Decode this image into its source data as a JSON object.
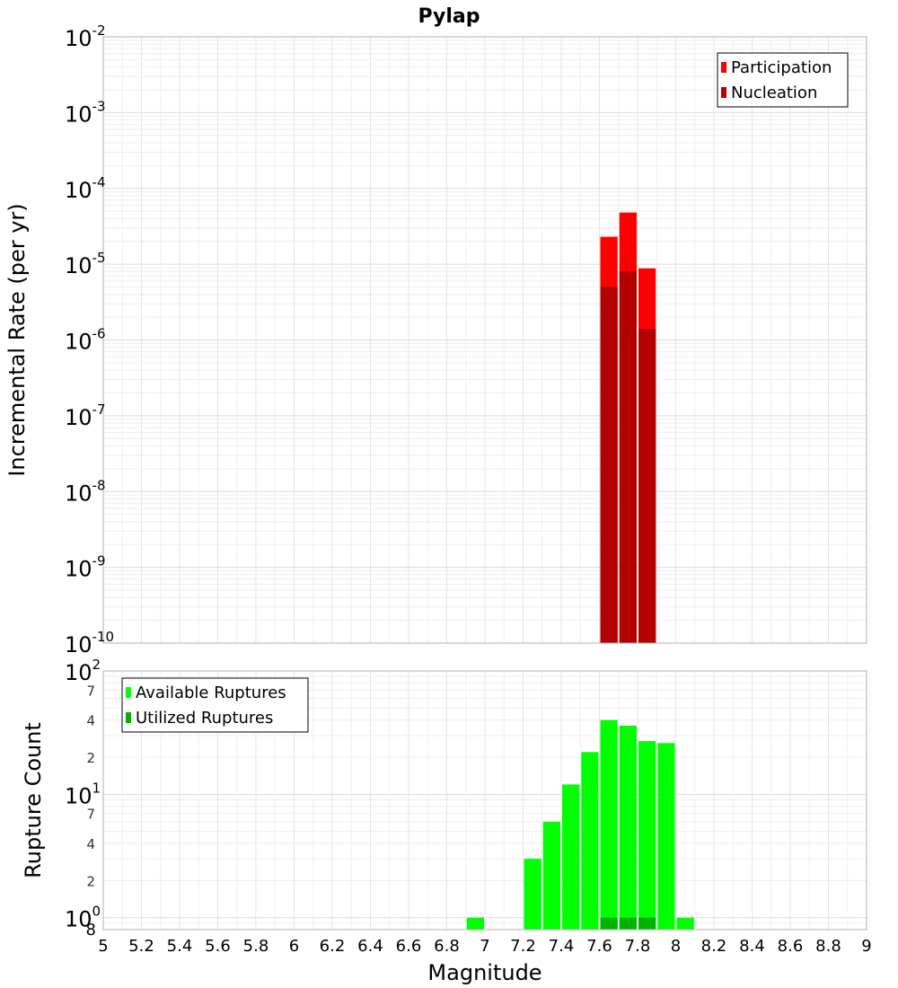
{
  "chart_data": [
    {
      "type": "bar",
      "title": "Pylap",
      "xlabel": "",
      "ylabel": "Incremental Rate (per yr)",
      "y_scale": "log",
      "ylim": [
        1e-10,
        0.01
      ],
      "xlim": [
        5,
        9
      ],
      "grid": true,
      "legend_position": "top-right",
      "y_ticks": [
        {
          "base": "10",
          "exp": "-10"
        },
        {
          "base": "10",
          "exp": "-9"
        },
        {
          "base": "10",
          "exp": "-8"
        },
        {
          "base": "10",
          "exp": "-7"
        },
        {
          "base": "10",
          "exp": "-6"
        },
        {
          "base": "10",
          "exp": "-5"
        },
        {
          "base": "10",
          "exp": "-4"
        },
        {
          "base": "10",
          "exp": "-3"
        },
        {
          "base": "10",
          "exp": "-2"
        }
      ],
      "x": [
        7.65,
        7.75,
        7.85
      ],
      "series": [
        {
          "name": "Participation",
          "color": "#ff0000",
          "values": [
            2.3e-05,
            4.8e-05,
            8.8e-06
          ]
        },
        {
          "name": "Nucleation",
          "color": "#b30000",
          "values": [
            5e-06,
            8e-06,
            1.4e-06
          ]
        }
      ]
    },
    {
      "type": "bar",
      "xlabel": "Magnitude",
      "ylabel": "Rupture Count",
      "y_scale": "log",
      "ylim": [
        0.8,
        100
      ],
      "xlim": [
        5,
        9
      ],
      "grid": true,
      "legend_position": "top-left",
      "x_ticks": [
        "5",
        "5.2",
        "5.4",
        "5.6",
        "5.8",
        "6",
        "6.2",
        "6.4",
        "6.6",
        "6.8",
        "7",
        "7.2",
        "7.4",
        "7.6",
        "7.8",
        "8",
        "8.2",
        "8.4",
        "8.6",
        "8.8",
        "9"
      ],
      "y_major_ticks": [
        {
          "base": "10",
          "exp": "0"
        },
        {
          "base": "10",
          "exp": "1"
        },
        {
          "base": "10",
          "exp": "2"
        }
      ],
      "y_minor_ticks": [
        {
          "value": 0.8,
          "label": "8"
        },
        {
          "value": 2,
          "label": "2"
        },
        {
          "value": 4,
          "label": "4"
        },
        {
          "value": 7,
          "label": "7"
        },
        {
          "value": 20,
          "label": "2"
        },
        {
          "value": 40,
          "label": "4"
        },
        {
          "value": 70,
          "label": "7"
        }
      ],
      "series": [
        {
          "name": "Available Ruptures",
          "color": "#00ff00",
          "x": [
            6.95,
            7.25,
            7.35,
            7.45,
            7.55,
            7.65,
            7.75,
            7.85,
            7.95,
            8.05
          ],
          "values": [
            1,
            3,
            6,
            12,
            22,
            40,
            36,
            27,
            26,
            1
          ]
        },
        {
          "name": "Utilized Ruptures",
          "color": "#00b300",
          "x": [
            7.65,
            7.75,
            7.85
          ],
          "values": [
            1,
            1,
            1
          ]
        }
      ]
    }
  ]
}
